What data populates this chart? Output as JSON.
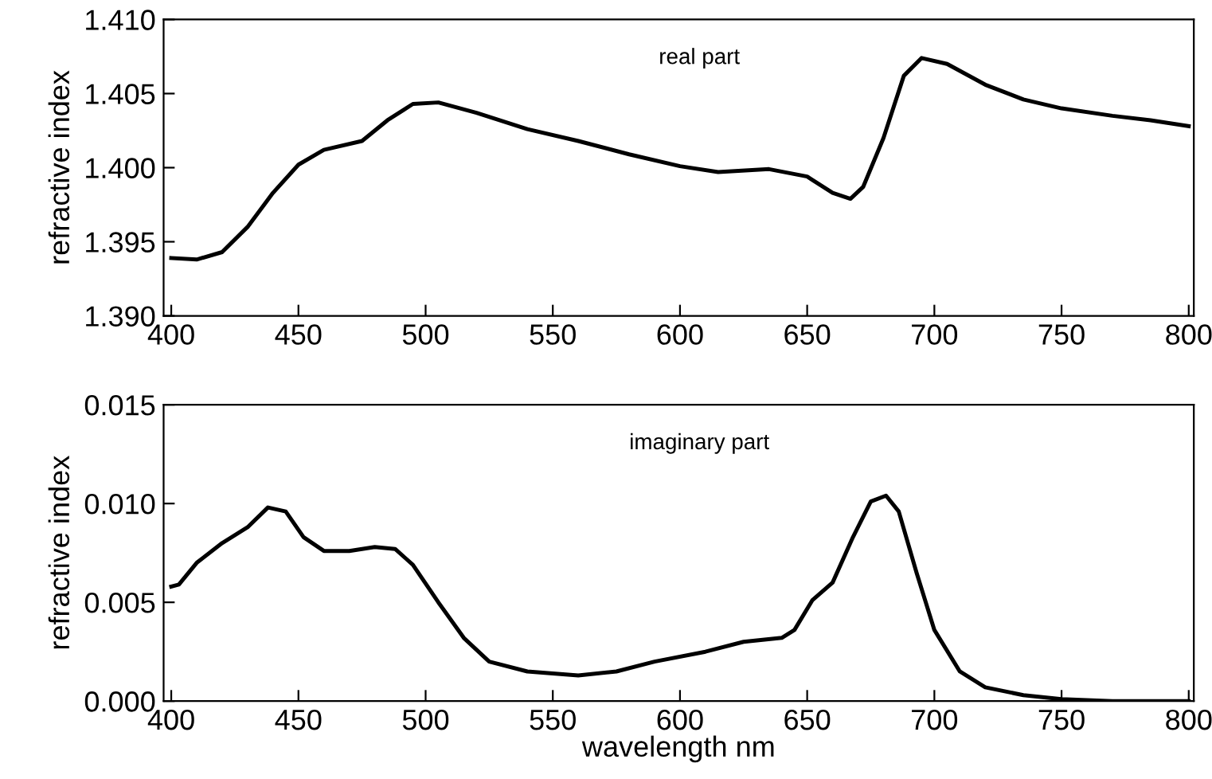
{
  "chart_data": [
    {
      "type": "line",
      "ylabel": "refractive index",
      "annotations": [
        "real part"
      ],
      "xlim": [
        397,
        802
      ],
      "xticks": [
        400,
        450,
        500,
        550,
        600,
        650,
        700,
        750,
        800
      ],
      "ylim": [
        1.39,
        1.41
      ],
      "yticks": [
        {
          "value": 1.39,
          "label": "1.390"
        },
        {
          "value": 1.395,
          "label": "1.395"
        },
        {
          "value": 1.4,
          "label": "1.400"
        },
        {
          "value": 1.405,
          "label": "1.405"
        },
        {
          "value": 1.41,
          "label": "1.410"
        }
      ],
      "grid": false,
      "legend": false,
      "series": [
        {
          "color": "#000000",
          "x": [
            400,
            410,
            420,
            430,
            440,
            450,
            460,
            475,
            485,
            495,
            505,
            520,
            540,
            560,
            580,
            600,
            615,
            635,
            650,
            660,
            667,
            672,
            680,
            688,
            695,
            705,
            720,
            735,
            750,
            770,
            785,
            800
          ],
          "values": [
            1.3939,
            1.3938,
            1.3943,
            1.396,
            1.3983,
            1.4002,
            1.4012,
            1.4018,
            1.4032,
            1.4043,
            1.4044,
            1.4037,
            1.4026,
            1.4018,
            1.4009,
            1.4001,
            1.3997,
            1.3999,
            1.3994,
            1.3983,
            1.3979,
            1.3987,
            1.402,
            1.4062,
            1.4074,
            1.407,
            1.4056,
            1.4046,
            1.404,
            1.4035,
            1.4032,
            1.4028
          ]
        }
      ]
    },
    {
      "type": "line",
      "ylabel": "refractive index",
      "xlabel": "wavelength nm",
      "annotations": [
        "imaginary part"
      ],
      "xlim": [
        397,
        802
      ],
      "xticks": [
        400,
        450,
        500,
        550,
        600,
        650,
        700,
        750,
        800
      ],
      "ylim": [
        0,
        0.015
      ],
      "yticks": [
        {
          "value": 0,
          "label": "0.000"
        },
        {
          "value": 0.005,
          "label": "0.005"
        },
        {
          "value": 0.01,
          "label": "0.010"
        },
        {
          "value": 0.015,
          "label": "0.015"
        }
      ],
      "grid": false,
      "legend": false,
      "series": [
        {
          "color": "#000000",
          "x": [
            400,
            403,
            410,
            420,
            430,
            438,
            445,
            452,
            460,
            470,
            480,
            488,
            495,
            505,
            515,
            525,
            540,
            560,
            575,
            590,
            610,
            625,
            640,
            645,
            652,
            660,
            668,
            675,
            681,
            686,
            693,
            700,
            710,
            720,
            735,
            750,
            770,
            800
          ],
          "values": [
            0.0058,
            0.0059,
            0.007,
            0.008,
            0.0088,
            0.0098,
            0.0096,
            0.0083,
            0.0076,
            0.0076,
            0.0078,
            0.0077,
            0.0069,
            0.005,
            0.0032,
            0.002,
            0.0015,
            0.0013,
            0.0015,
            0.002,
            0.0025,
            0.003,
            0.0032,
            0.0036,
            0.0051,
            0.006,
            0.0083,
            0.0101,
            0.0104,
            0.0096,
            0.0065,
            0.0036,
            0.0015,
            0.0007,
            0.0003,
            0.0001,
            0.0,
            0.0
          ]
        }
      ]
    }
  ]
}
